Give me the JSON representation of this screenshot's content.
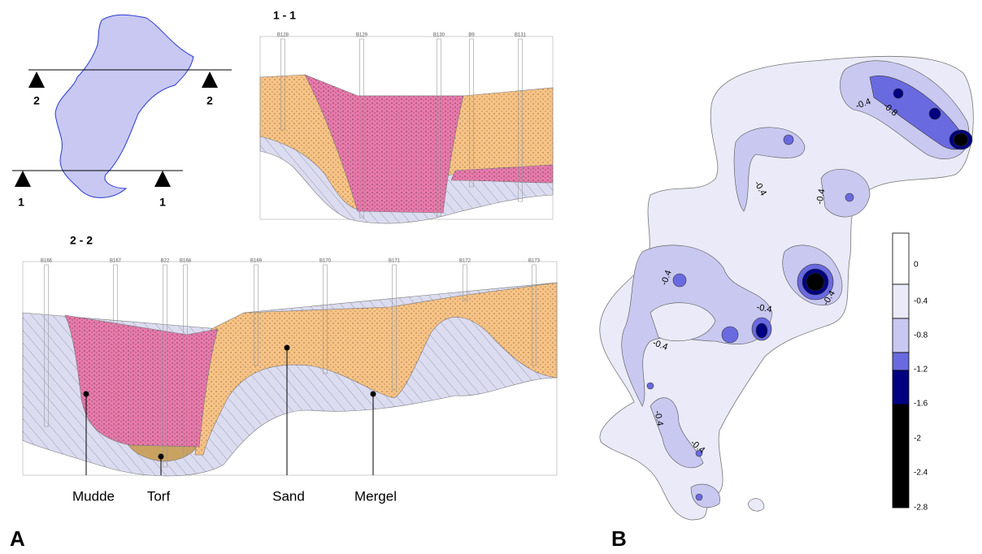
{
  "panel_a": {
    "label": "A",
    "plan": {
      "markers": [
        "2",
        "2",
        "1",
        "1"
      ]
    },
    "section_1": {
      "title": "1 - 1",
      "boreholes": [
        "B128",
        "B129",
        "B130",
        "B9",
        "B131"
      ]
    },
    "section_2": {
      "title": "2 - 2",
      "boreholes": [
        "B166",
        "B167",
        "B22",
        "B168",
        "B169",
        "B170",
        "B171",
        "B172",
        "B173"
      ]
    },
    "legend": [
      "Mudde",
      "Torf",
      "Sand",
      "Mergel"
    ]
  },
  "panel_b": {
    "label": "B",
    "contour_labels": [
      -0.4,
      -0.8,
      -0.4,
      -0.4,
      -0.4,
      -0.4,
      -0.4,
      -0.4,
      -0.4,
      -0.4
    ],
    "colorbar": [
      0,
      -0.4,
      -0.8,
      -1.2,
      -1.6,
      -2,
      -2.4,
      -2.8
    ]
  }
}
